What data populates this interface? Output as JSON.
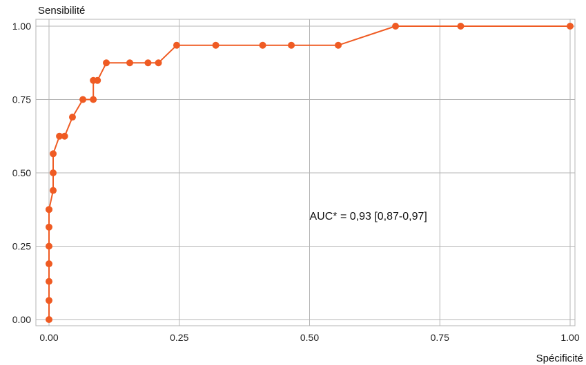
{
  "chart_data": {
    "type": "line",
    "title": "",
    "xlabel": "Spécificité",
    "ylabel": "Sensibilité",
    "xlim": [
      0,
      1
    ],
    "ylim": [
      0,
      1
    ],
    "grid": true,
    "legend": "none",
    "x_tick_labels": [
      "0.00",
      "0.25",
      "0.50",
      "0.75",
      "1.00"
    ],
    "y_tick_labels": [
      "0.00",
      "0.25",
      "0.50",
      "0.75",
      "1.00"
    ],
    "x_ticks": [
      0,
      0.25,
      0.5,
      0.75,
      1
    ],
    "y_ticks": [
      0,
      0.25,
      0.5,
      0.75,
      1
    ],
    "annotation": "AUC* = 0,93 [0,87-0,97]",
    "annotation_at": [
      0.5,
      0.34
    ],
    "color": "#ef5b23",
    "series": [
      {
        "x": [
          0,
          0,
          0,
          0,
          0,
          0,
          0,
          0,
          0.008,
          0.008,
          0.008,
          0.02,
          0.03,
          0.045,
          0.065,
          0.085,
          0.085,
          0.093,
          0.11,
          0.155,
          0.19,
          0.21,
          0.245,
          0.32,
          0.41,
          0.465,
          0.555,
          0.665,
          0.79,
          1.0
        ],
        "y": [
          0,
          0.065,
          0.13,
          0.19,
          0.25,
          0.315,
          0.375,
          0.375,
          0.44,
          0.5,
          0.565,
          0.625,
          0.625,
          0.69,
          0.75,
          0.75,
          0.815,
          0.815,
          0.875,
          0.875,
          0.875,
          0.875,
          0.935,
          0.935,
          0.935,
          0.935,
          0.935,
          1.0,
          1.0,
          1.0
        ]
      }
    ]
  }
}
